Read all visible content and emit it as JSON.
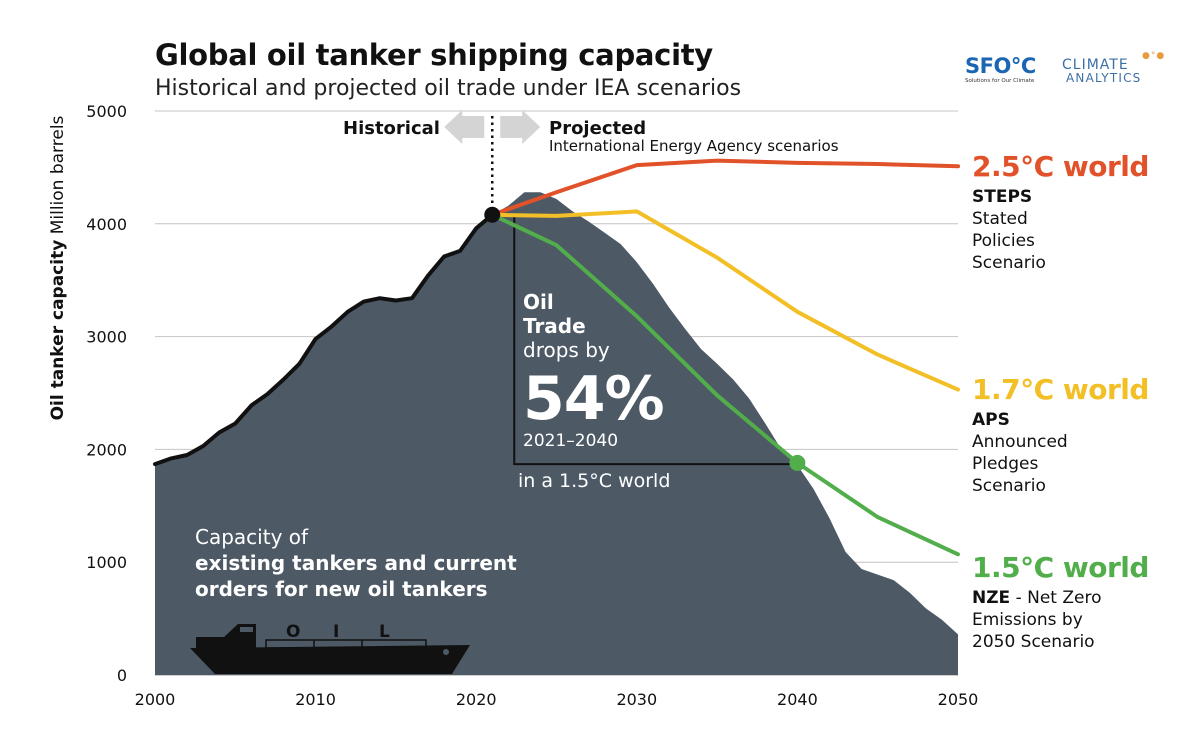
{
  "title": "Global oil tanker shipping capacity",
  "subtitle": "Historical and projected oil trade under IEA scenarios",
  "ylabel_bold": "Oil tanker capacity",
  "ylabel_rest": "Million barrels",
  "logos": {
    "sfoc": "SFO°C",
    "sfoc_tagline": "Solutions for Our Climate",
    "ca_line1": "CLIMATE",
    "ca_line2": "ANALYTICS"
  },
  "annotations": {
    "historical": "Historical",
    "projected": "Projected",
    "iea": "International Energy Agency scenarios",
    "oil": "Oil",
    "trade": "Trade",
    "drops_by": "drops by",
    "percent": "54%",
    "period": "2021–2040",
    "world": "in a 1.5°C world",
    "capacity_line1": "Capacity of",
    "capacity_line2": "existing tankers and current",
    "capacity_line3": "orders for new oil tankers",
    "ship_letters": [
      "O",
      "I",
      "L"
    ]
  },
  "scenarios": {
    "steps": {
      "heading": "2.5°C world",
      "code": "STEPS",
      "desc": [
        "Stated",
        "Policies",
        "Scenario"
      ]
    },
    "aps": {
      "heading": "1.7°C world",
      "code": "APS",
      "desc": [
        "Announced",
        "Pledges",
        "Scenario"
      ]
    },
    "nze": {
      "heading": "1.5°C world",
      "code": "NZE",
      "desc_first": " - Net Zero",
      "desc": [
        "Emissions by",
        "2050 Scenario"
      ]
    }
  },
  "colors": {
    "area": "#4d5a66",
    "steps": "#e2522a",
    "aps": "#f2bf26",
    "nze": "#52ad4b",
    "history": "#111111",
    "arrow": "#d4d4d4"
  },
  "chart_data": {
    "type": "area",
    "xlim": [
      2000,
      2050
    ],
    "ylim": [
      0,
      5000
    ],
    "xticks": [
      2000,
      2010,
      2020,
      2030,
      2040,
      2050
    ],
    "yticks": [
      0,
      1000,
      2000,
      3000,
      4000,
      5000
    ],
    "grid": "horizontal",
    "capacity_area": {
      "x": [
        2000,
        2001,
        2002,
        2003,
        2004,
        2005,
        2006,
        2007,
        2008,
        2009,
        2010,
        2011,
        2012,
        2013,
        2014,
        2015,
        2016,
        2017,
        2018,
        2019,
        2020,
        2021,
        2022,
        2023,
        2024,
        2025,
        2026,
        2027,
        2028,
        2029,
        2030,
        2031,
        2032,
        2033,
        2034,
        2035,
        2036,
        2037,
        2038,
        2039,
        2040,
        2041,
        2042,
        2043,
        2044,
        2045,
        2046,
        2047,
        2048,
        2049,
        2050
      ],
      "y": [
        1870,
        1920,
        1950,
        2030,
        2150,
        2230,
        2390,
        2490,
        2620,
        2760,
        2980,
        3090,
        3220,
        3310,
        3340,
        3320,
        3340,
        3540,
        3710,
        3760,
        3960,
        4080,
        4160,
        4280,
        4280,
        4220,
        4110,
        4020,
        3920,
        3820,
        3660,
        3470,
        3260,
        3070,
        2890,
        2760,
        2620,
        2450,
        2230,
        2000,
        1860,
        1650,
        1390,
        1090,
        940,
        890,
        840,
        730,
        590,
        490,
        360
      ]
    },
    "series": [
      {
        "name": "Historical",
        "x": [
          2000,
          2001,
          2002,
          2003,
          2004,
          2005,
          2006,
          2007,
          2008,
          2009,
          2010,
          2011,
          2012,
          2013,
          2014,
          2015,
          2016,
          2017,
          2018,
          2019,
          2020,
          2021
        ],
        "y": [
          1870,
          1920,
          1950,
          2030,
          2150,
          2230,
          2390,
          2490,
          2620,
          2760,
          2980,
          3090,
          3220,
          3310,
          3340,
          3320,
          3340,
          3540,
          3710,
          3760,
          3960,
          4080
        ]
      },
      {
        "name": "STEPS",
        "x": [
          2021,
          2025,
          2030,
          2035,
          2040,
          2045,
          2050
        ],
        "y": [
          4080,
          4280,
          4520,
          4560,
          4540,
          4530,
          4510
        ]
      },
      {
        "name": "APS",
        "x": [
          2021,
          2025,
          2030,
          2035,
          2040,
          2045,
          2050
        ],
        "y": [
          4080,
          4070,
          4110,
          3700,
          3220,
          2840,
          2530
        ]
      },
      {
        "name": "NZE",
        "x": [
          2021,
          2025,
          2030,
          2035,
          2040,
          2045,
          2050
        ],
        "y": [
          4080,
          3810,
          3180,
          2480,
          1880,
          1400,
          1070
        ]
      }
    ],
    "markers": [
      {
        "x": 2021,
        "y": 4080,
        "color": "#111111"
      },
      {
        "x": 2040,
        "y": 1880,
        "color": "#52ad4b"
      }
    ],
    "drop_box": {
      "x": [
        2021,
        2040
      ],
      "y": [
        1870,
        4080
      ]
    },
    "divider_year": 2021
  }
}
